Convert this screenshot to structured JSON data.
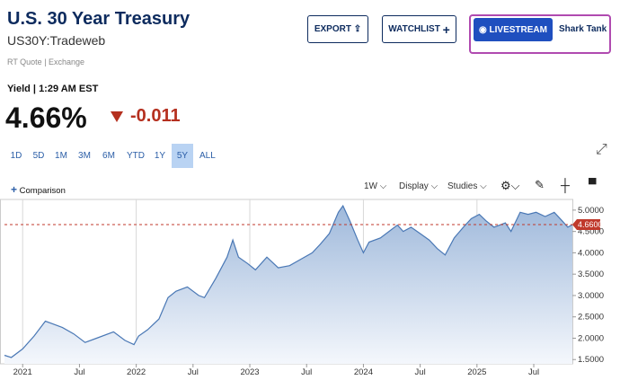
{
  "header": {
    "title": "U.S. 30 Year Treasury",
    "symbol": "US30Y:Tradeweb",
    "quote_source": "RT Quote | Exchange",
    "quote_label": "Yield | 1:29 AM EST",
    "last": "4.66%",
    "change": "-0.011"
  },
  "buttons": [
    "EXPORT",
    "WATCHLIST",
    "LIVESTREAM",
    "Shark Tank"
  ],
  "ranges": [
    "1D",
    "5D",
    "1M",
    "3M",
    "6M",
    "YTD",
    "1Y",
    "5Y",
    "ALL"
  ],
  "selected_range": "5Y",
  "toolbar": [
    "Comparison",
    "1W",
    "Display",
    "Studies"
  ],
  "chart_data": {
    "type": "area",
    "x": [
      2020.84,
      2020.9,
      2021.0,
      2021.1,
      2021.2,
      2021.25,
      2021.35,
      2021.45,
      2021.55,
      2021.65,
      2021.8,
      2021.9,
      2021.98,
      2022.02,
      2022.1,
      2022.2,
      2022.28,
      2022.35,
      2022.45,
      2022.55,
      2022.6,
      2022.7,
      2022.8,
      2022.85,
      2022.9,
      2022.98,
      2023.05,
      2023.15,
      2023.25,
      2023.35,
      2023.45,
      2023.55,
      2023.62,
      2023.7,
      2023.78,
      2023.82,
      2023.88,
      2023.95,
      2024.0,
      2024.05,
      2024.15,
      2024.3,
      2024.35,
      2024.42,
      2024.5,
      2024.58,
      2024.65,
      2024.72,
      2024.8,
      2024.88,
      2024.95,
      2025.02,
      2025.08,
      2025.15,
      2025.25,
      2025.3,
      2025.38,
      2025.45,
      2025.52,
      2025.6,
      2025.68,
      2025.75,
      2025.8,
      2025.84
    ],
    "series": [
      {
        "name": "US30Y",
        "color": "#4a78b5",
        "values": [
          1.6,
          1.55,
          1.75,
          2.05,
          2.4,
          2.35,
          2.25,
          2.1,
          1.9,
          2.0,
          2.15,
          1.95,
          1.85,
          2.05,
          2.2,
          2.45,
          2.95,
          3.1,
          3.2,
          3.0,
          2.95,
          3.4,
          3.9,
          4.3,
          3.9,
          3.75,
          3.6,
          3.9,
          3.65,
          3.7,
          3.85,
          4.0,
          4.2,
          4.45,
          4.95,
          5.1,
          4.75,
          4.3,
          4.0,
          4.25,
          4.35,
          4.65,
          4.5,
          4.6,
          4.45,
          4.3,
          4.1,
          3.95,
          4.35,
          4.6,
          4.8,
          4.9,
          4.75,
          4.6,
          4.7,
          4.5,
          4.95,
          4.9,
          4.95,
          4.85,
          4.95,
          4.75,
          4.6,
          4.66
        ]
      }
    ],
    "xlim": [
      2020.84,
      2025.84
    ],
    "xticks": [
      {
        "value": 2021,
        "label": "2021"
      },
      {
        "value": 2021.5,
        "label": "Jul"
      },
      {
        "value": 2022,
        "label": "2022"
      },
      {
        "value": 2022.5,
        "label": "Jul"
      },
      {
        "value": 2023,
        "label": "2023"
      },
      {
        "value": 2023.5,
        "label": "Jul"
      },
      {
        "value": 2024,
        "label": "2024"
      },
      {
        "value": 2024.5,
        "label": "Jul"
      },
      {
        "value": 2025,
        "label": "2025"
      },
      {
        "value": 2025.5,
        "label": "Jul"
      }
    ],
    "xgrid": [
      2021,
      2022,
      2023,
      2024,
      2025
    ],
    "ylim": [
      1.4,
      5.25
    ],
    "yticks": [
      {
        "value": 1.5,
        "label": "1.5000"
      },
      {
        "value": 2.0,
        "label": "2.0000"
      },
      {
        "value": 2.5,
        "label": "2.5000"
      },
      {
        "value": 3.0,
        "label": "3.0000"
      },
      {
        "value": 3.5,
        "label": "3.5000"
      },
      {
        "value": 4.0,
        "label": "4.0000"
      },
      {
        "value": 4.5,
        "label": "4.5000"
      },
      {
        "value": 5.0,
        "label": "5.0000"
      }
    ],
    "price_line": {
      "value": 4.66,
      "label": "4.6600",
      "color": "#c0392b"
    }
  }
}
